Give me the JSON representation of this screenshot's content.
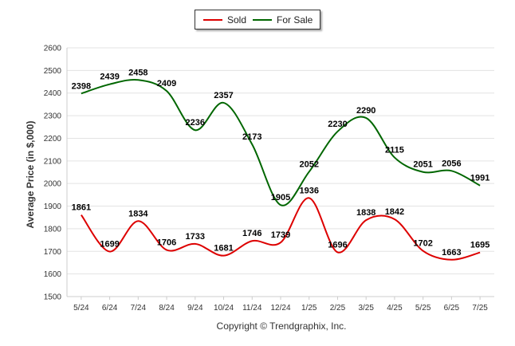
{
  "chart_data": {
    "type": "line",
    "categories": [
      "5/24",
      "6/24",
      "7/24",
      "8/24",
      "9/24",
      "10/24",
      "11/24",
      "12/24",
      "1/25",
      "2/25",
      "3/25",
      "4/25",
      "5/25",
      "6/25",
      "7/25"
    ],
    "series": [
      {
        "name": "Sold",
        "color": "#dd0000",
        "values": [
          1861,
          1699,
          1834,
          1706,
          1733,
          1681,
          1746,
          1739,
          1936,
          1696,
          1838,
          1842,
          1702,
          1663,
          1695
        ]
      },
      {
        "name": "For Sale",
        "color": "#006600",
        "values": [
          2398,
          2439,
          2458,
          2409,
          2236,
          2357,
          2173,
          1905,
          2052,
          2230,
          2290,
          2115,
          2051,
          2056,
          1991
        ]
      }
    ],
    "ylabel": "Average Price (in $,000)",
    "xlabel": "",
    "ylim": [
      1500,
      2600
    ],
    "yticks": [
      1500,
      1600,
      1700,
      1800,
      1900,
      2000,
      2100,
      2200,
      2300,
      2400,
      2500,
      2600
    ],
    "grid": true,
    "legend_position": "top-center",
    "footer": "Copyright © Trendgraphix, Inc."
  }
}
